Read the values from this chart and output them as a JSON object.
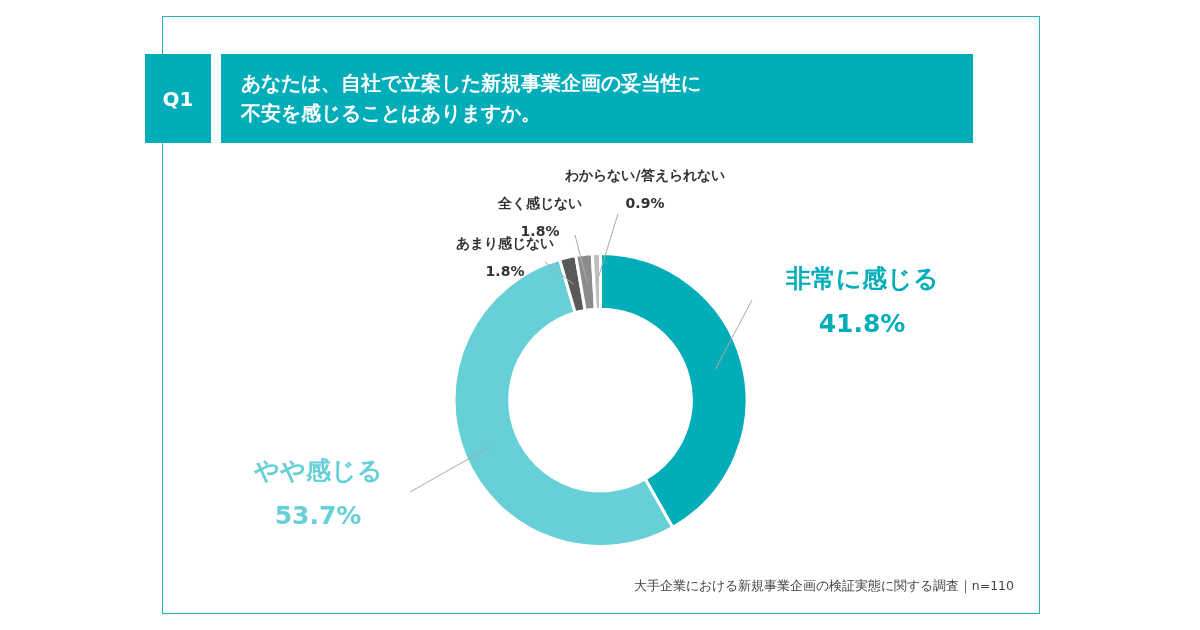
{
  "chart_data": {
    "type": "donut",
    "title": "あなたは、自社で立案した新規事業企画の妥当性に不安を感じることはありますか。",
    "annotations": [
      "Q1",
      "大手企業における新規事業企画の検証実態に関する調査｜n=110"
    ],
    "categories": [
      "非常に感じる",
      "やや感じる",
      "あまり感じない",
      "全く感じない",
      "わからない/答えられない"
    ],
    "values": [
      41.8,
      53.7,
      1.8,
      1.8,
      0.9
    ],
    "value_labels": [
      "41.8%",
      "53.7%",
      "1.8%",
      "1.8%",
      "0.9%"
    ],
    "colors": [
      "#00adb9",
      "#67cfd7",
      "#595959",
      "#8c8c8c",
      "#bfbfbf"
    ],
    "legend": false
  }
}
